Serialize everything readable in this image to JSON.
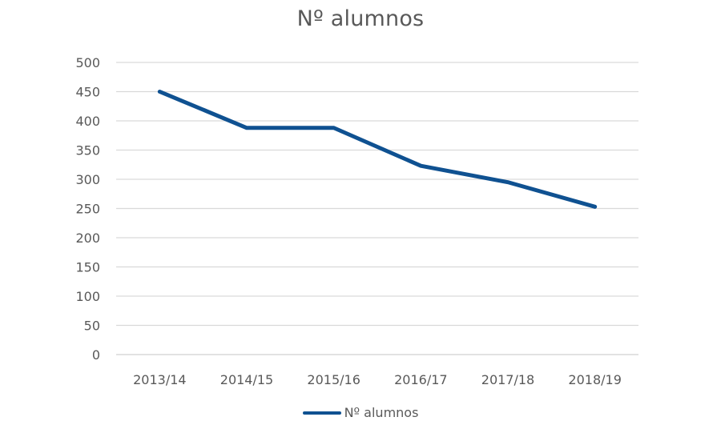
{
  "chart_data": {
    "type": "line",
    "title": "Nº alumnos",
    "xlabel": "",
    "ylabel": "",
    "categories": [
      "2013/14",
      "2014/15",
      "2015/16",
      "2016/17",
      "2017/18",
      "2018/19"
    ],
    "series": [
      {
        "name": "Nº alumnos",
        "values": [
          450,
          388,
          388,
          323,
          295,
          253
        ],
        "color": "#0f5191"
      }
    ],
    "ylim": [
      0,
      500
    ],
    "yticks": [
      0,
      50,
      100,
      150,
      200,
      250,
      300,
      350,
      400,
      450,
      500
    ],
    "grid": true,
    "legend_position": "bottom",
    "gridline_color": "#d9d9d9",
    "text_color": "#595959"
  }
}
